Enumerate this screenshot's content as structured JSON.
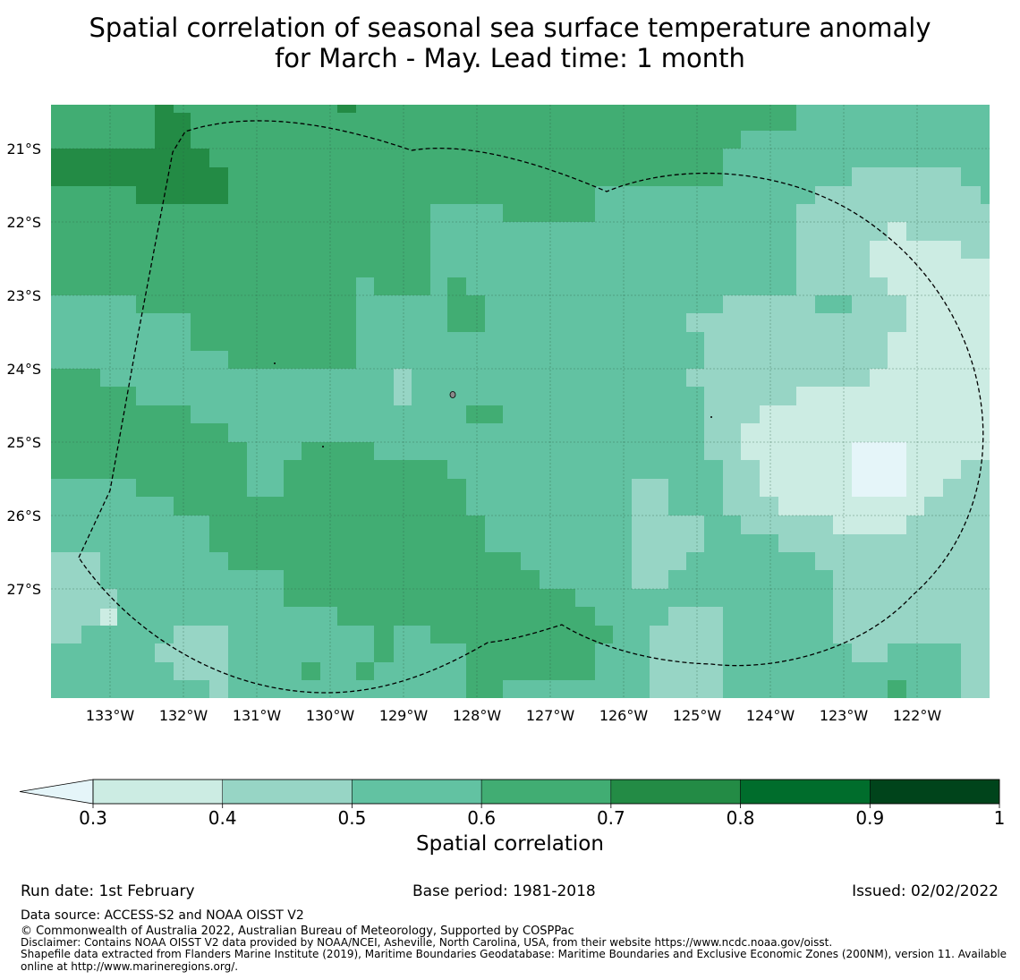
{
  "title": {
    "line1": "Spatial correlation of seasonal sea surface temperature anomaly",
    "line2": "for March - May. Lead time: 1 month"
  },
  "map": {
    "lon_labels": [
      "133°W",
      "132°W",
      "131°W",
      "130°W",
      "129°W",
      "128°W",
      "127°W",
      "126°W",
      "125°W",
      "124°W",
      "123°W",
      "122°W"
    ],
    "lat_labels": [
      "21°S",
      "22°S",
      "23°S",
      "24°S",
      "25°S",
      "26°S",
      "27°S"
    ],
    "colors": {
      "c03": "#ccece3",
      "c04": "#97d5c5",
      "c05": "#62c2a2",
      "c06": "#41ad73",
      "c07": "#238b45",
      "c08": "#006d2c",
      "c09": "#00441b",
      "below": "#e5f5f9"
    }
  },
  "colorbar": {
    "ticks": [
      "0.3",
      "0.4",
      "0.5",
      "0.6",
      "0.7",
      "0.8",
      "0.9",
      "1"
    ],
    "label": "Spatial correlation"
  },
  "footer": {
    "run_date": "Run date: 1st February",
    "base_period": "Base period: 1981-2018",
    "issued": "Issued: 02/02/2022",
    "data_source": "Data source: ACCESS-S2 and NOAA OISST V2",
    "copyright": "© Commonwealth of Australia 2022, Australian Bureau of Meteorology, Supported by COSPPac",
    "disclaimer": "Disclaimer: Contains NOAA OISST V2 data provided by NOAA/NCEI, Asheville, North Carolina, USA, from their website https://www.ncdc.noaa.gov/oisst.",
    "shapefile1": "Shapefile data extracted from Flanders Marine Institute (2019), Maritime Boundaries Geodatabase: Maritime Boundaries and Exclusive Economic Zones (200NM), version 11. Available",
    "shapefile2": "online at http://www.marineregions.org/."
  }
}
